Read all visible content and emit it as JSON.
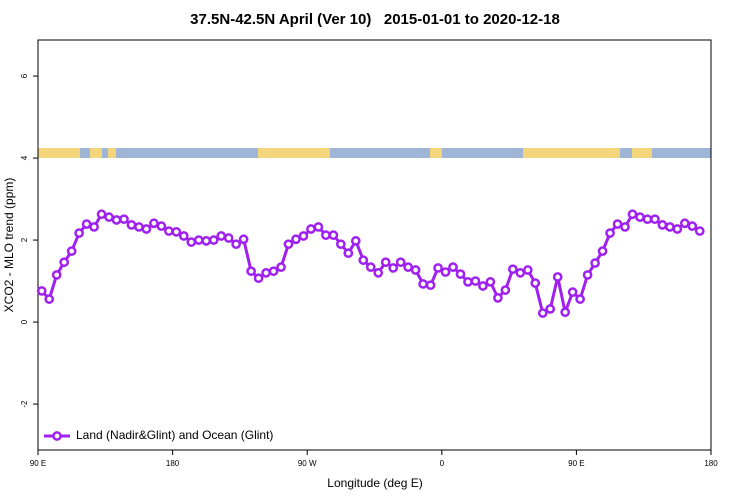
{
  "chart_data": {
    "type": "line",
    "title": "37.5N-42.5N April (Ver 10)   2015-01-01 to 2020-12-18",
    "x_label": "Longitude (deg E)",
    "y_label": "XCO2 - MLO trend (ppm)",
    "xlim": [
      90,
      540
    ],
    "ylim": [
      -3.12,
      6.88
    ],
    "xticks": [
      {
        "value": 90,
        "label": "90 E"
      },
      180,
      {
        "value": 270,
        "label": "90 W"
      },
      {
        "value": 360,
        "label": "0"
      },
      {
        "value": 450,
        "label": "90 E"
      },
      {
        "value": 540,
        "label": "180"
      }
    ],
    "yticks": [
      -2,
      0,
      2,
      4,
      6
    ],
    "legend": "bottom left",
    "x": [
      92.5,
      97.5,
      102.5,
      107.5,
      112.5,
      117.5,
      122.5,
      127.5,
      132.5,
      137.5,
      142.5,
      147.5,
      152.5,
      157.5,
      162.5,
      167.5,
      172.5,
      177.5,
      182.5,
      187.5,
      192.5,
      197.5,
      202.5,
      207.5,
      212.5,
      217.5,
      222.5,
      227.5,
      232.5,
      237.5,
      242.5,
      247.5,
      252.5,
      257.5,
      262.5,
      267.5,
      272.5,
      277.5,
      282.5,
      287.5,
      292.5,
      297.5,
      302.5,
      307.5,
      312.5,
      317.5,
      322.5,
      327.5,
      332.5,
      337.5,
      342.5,
      347.5,
      352.5,
      357.5,
      362.5,
      367.5,
      372.5,
      377.5,
      382.5,
      387.5,
      392.5,
      397.5,
      402.5,
      407.5,
      412.5,
      417.5,
      422.5,
      427.5,
      432.5,
      437.5,
      442.5,
      447.5,
      452.5,
      457.5,
      462.5,
      467.5,
      472.5,
      477.5,
      482.5,
      487.5,
      492.5,
      497.5,
      502.5,
      507.5,
      512.5,
      517.5,
      522.5,
      527.5,
      532.5
    ],
    "series": [
      {
        "name": "Land (Nadir&Glint) and Ocean (Glint)",
        "color": "#a020f0",
        "values": [
          0.76,
          0.56,
          1.15,
          1.46,
          1.73,
          2.17,
          2.39,
          2.32,
          2.63,
          2.56,
          2.49,
          2.51,
          2.37,
          2.32,
          2.27,
          2.41,
          2.34,
          2.22,
          2.2,
          2.1,
          1.95,
          2.0,
          1.98,
          2.0,
          2.1,
          2.05,
          1.9,
          2.02,
          1.24,
          1.07,
          1.2,
          1.24,
          1.34,
          1.9,
          2.02,
          2.1,
          2.27,
          2.32,
          2.12,
          2.12,
          1.9,
          1.68,
          1.98,
          1.51,
          1.34,
          1.2,
          1.46,
          1.32,
          1.46,
          1.34,
          1.27,
          0.93,
          0.9,
          1.32,
          1.22,
          1.34,
          1.17,
          0.98,
          1.0,
          0.88,
          0.98,
          0.59,
          0.78,
          1.29,
          1.2,
          1.27,
          0.95,
          0.22,
          0.32,
          1.1,
          0.24,
          0.73,
          0.56,
          1.15,
          1.44,
          1.73,
          2.17,
          2.39,
          2.32,
          2.63,
          2.56,
          2.51,
          2.51,
          2.37,
          2.32,
          2.27,
          2.41,
          2.34,
          2.22
        ]
      }
    ]
  }
}
